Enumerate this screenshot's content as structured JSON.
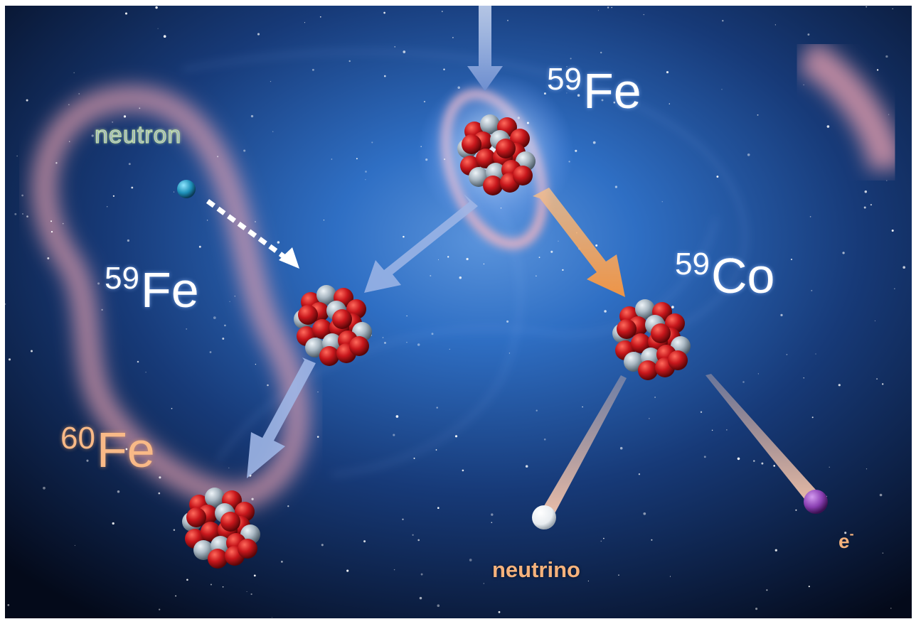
{
  "labels": {
    "fe59_top": {
      "mass": "59",
      "element": "Fe"
    },
    "fe59_left": {
      "mass": "59",
      "element": "Fe"
    },
    "co59": {
      "mass": "59",
      "element": "Co"
    },
    "fe60": {
      "mass": "60",
      "element": "Fe"
    },
    "neutron": "neutron",
    "neutrino": "neutrino",
    "electron": {
      "symbol": "e",
      "charge": "-"
    }
  },
  "colors": {
    "background_center": "#2f6fc4",
    "background_edge": "#040a1a",
    "nebula": "#f3a6b3",
    "proton": "#c8171c",
    "neutron_particle": "#a9b7c2",
    "blue_arrow": "#9fb6e6",
    "orange_arrow": "#f3a15a",
    "electron": "#8a3fb2",
    "neutrino": "#ffffff"
  }
}
